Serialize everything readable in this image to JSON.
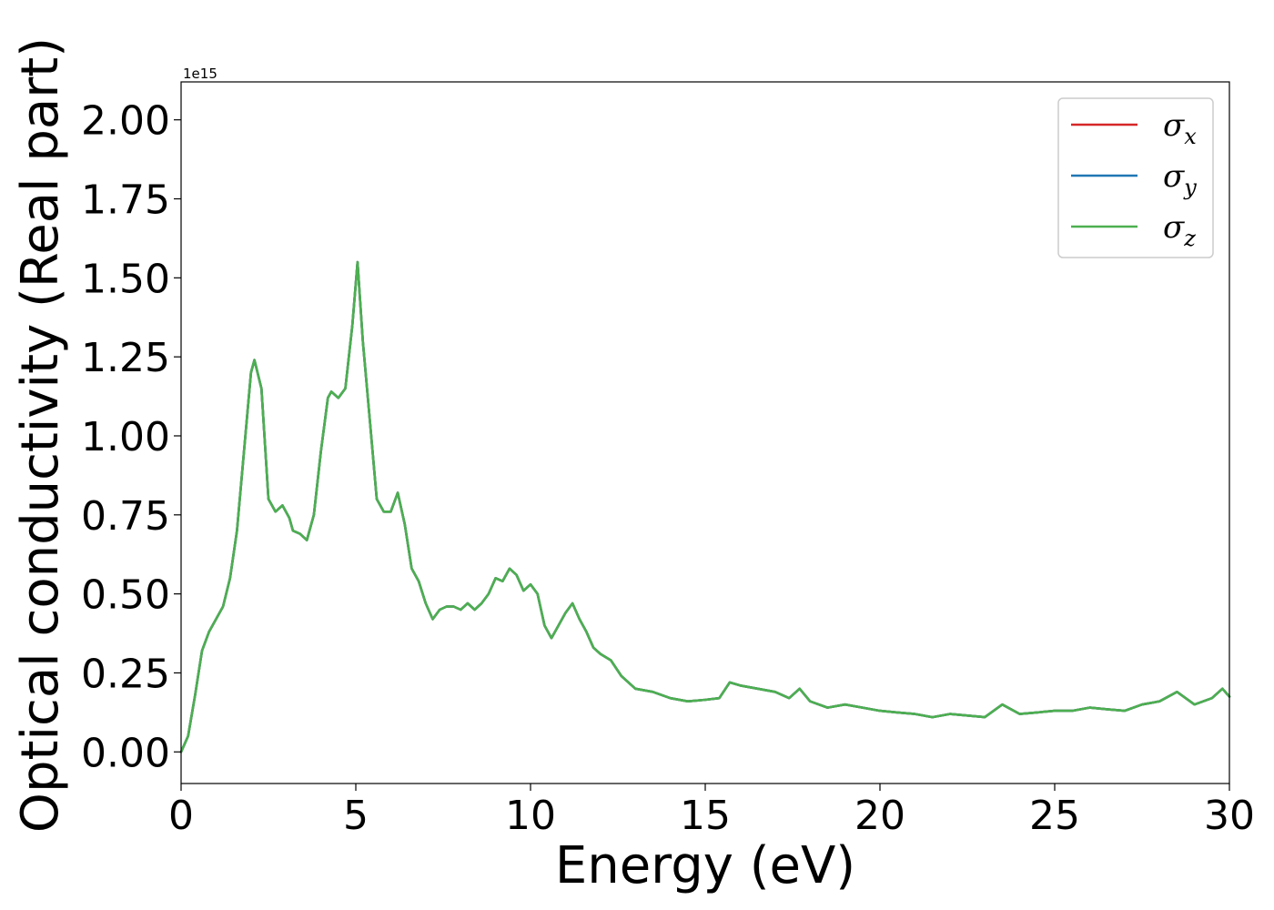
{
  "chart_data": {
    "type": "line",
    "title": "",
    "xlabel": "Energy (eV)",
    "ylabel": "Optical conductivity (Real part)",
    "y_offset_label": "1e15",
    "xlim": [
      0,
      30
    ],
    "ylim": [
      -0.1,
      2.12
    ],
    "xticks": [
      0,
      5,
      10,
      15,
      20,
      25,
      30
    ],
    "yticks": [
      0.0,
      0.25,
      0.5,
      0.75,
      1.0,
      1.25,
      1.5,
      1.75,
      2.0
    ],
    "xtick_labels": [
      "0",
      "5",
      "10",
      "15",
      "20",
      "25",
      "30"
    ],
    "ytick_labels": [
      "0.00",
      "0.25",
      "0.50",
      "0.75",
      "1.00",
      "1.25",
      "1.50",
      "1.75",
      "2.00"
    ],
    "grid": false,
    "legend_position": "top-right",
    "x": [
      0.0,
      0.2,
      0.4,
      0.6,
      0.8,
      1.0,
      1.2,
      1.4,
      1.6,
      1.8,
      2.0,
      2.1,
      2.3,
      2.5,
      2.7,
      2.9,
      3.1,
      3.2,
      3.4,
      3.6,
      3.8,
      4.0,
      4.2,
      4.3,
      4.5,
      4.7,
      4.9,
      5.05,
      5.2,
      5.4,
      5.6,
      5.8,
      6.0,
      6.2,
      6.4,
      6.6,
      6.8,
      7.0,
      7.2,
      7.4,
      7.6,
      7.8,
      8.0,
      8.2,
      8.4,
      8.6,
      8.8,
      9.0,
      9.2,
      9.4,
      9.6,
      9.8,
      10.0,
      10.2,
      10.4,
      10.6,
      10.8,
      11.0,
      11.2,
      11.4,
      11.6,
      11.8,
      12.0,
      12.3,
      12.6,
      13.0,
      13.5,
      14.0,
      14.5,
      15.0,
      15.4,
      15.7,
      16.0,
      16.5,
      17.0,
      17.4,
      17.7,
      18.0,
      18.5,
      19.0,
      19.5,
      20.0,
      20.5,
      21.0,
      21.5,
      22.0,
      22.5,
      23.0,
      23.5,
      24.0,
      24.5,
      25.0,
      25.5,
      26.0,
      26.5,
      27.0,
      27.5,
      28.0,
      28.5,
      29.0,
      29.5,
      29.8,
      30.0
    ],
    "series": [
      {
        "name": "σx",
        "legend_main": "σ",
        "legend_sub": "x",
        "color": "#d62728",
        "values": [
          0.0,
          0.05,
          0.18,
          0.32,
          0.38,
          0.42,
          0.46,
          0.55,
          0.7,
          0.95,
          1.2,
          1.24,
          1.15,
          0.8,
          0.76,
          0.78,
          0.74,
          0.7,
          0.69,
          0.67,
          0.75,
          0.95,
          1.12,
          1.14,
          1.12,
          1.15,
          1.35,
          1.55,
          1.3,
          1.05,
          0.8,
          0.76,
          0.76,
          0.82,
          0.72,
          0.58,
          0.54,
          0.47,
          0.42,
          0.45,
          0.46,
          0.46,
          0.45,
          0.47,
          0.45,
          0.47,
          0.5,
          0.55,
          0.54,
          0.58,
          0.56,
          0.51,
          0.53,
          0.5,
          0.4,
          0.36,
          0.4,
          0.44,
          0.47,
          0.42,
          0.38,
          0.33,
          0.31,
          0.29,
          0.24,
          0.2,
          0.19,
          0.17,
          0.16,
          0.165,
          0.17,
          0.22,
          0.21,
          0.2,
          0.19,
          0.17,
          0.2,
          0.16,
          0.14,
          0.15,
          0.14,
          0.13,
          0.125,
          0.12,
          0.11,
          0.12,
          0.115,
          0.11,
          0.15,
          0.12,
          0.125,
          0.13,
          0.13,
          0.14,
          0.135,
          0.13,
          0.15,
          0.16,
          0.19,
          0.15,
          0.17,
          0.2,
          0.175
        ]
      },
      {
        "name": "σy",
        "legend_main": "σ",
        "legend_sub": "y",
        "color": "#1f77b4",
        "values": [
          0.0,
          0.05,
          0.18,
          0.32,
          0.38,
          0.42,
          0.46,
          0.55,
          0.7,
          0.95,
          1.2,
          1.24,
          1.15,
          0.8,
          0.76,
          0.78,
          0.74,
          0.7,
          0.69,
          0.67,
          0.75,
          0.95,
          1.12,
          1.14,
          1.12,
          1.15,
          1.35,
          1.55,
          1.3,
          1.05,
          0.8,
          0.76,
          0.76,
          0.82,
          0.72,
          0.58,
          0.54,
          0.47,
          0.42,
          0.45,
          0.46,
          0.46,
          0.45,
          0.47,
          0.45,
          0.47,
          0.5,
          0.55,
          0.54,
          0.58,
          0.56,
          0.51,
          0.53,
          0.5,
          0.4,
          0.36,
          0.4,
          0.44,
          0.47,
          0.42,
          0.38,
          0.33,
          0.31,
          0.29,
          0.24,
          0.2,
          0.19,
          0.17,
          0.16,
          0.165,
          0.17,
          0.22,
          0.21,
          0.2,
          0.19,
          0.17,
          0.2,
          0.16,
          0.14,
          0.15,
          0.14,
          0.13,
          0.125,
          0.12,
          0.11,
          0.12,
          0.115,
          0.11,
          0.15,
          0.12,
          0.125,
          0.13,
          0.13,
          0.14,
          0.135,
          0.13,
          0.15,
          0.16,
          0.19,
          0.15,
          0.17,
          0.2,
          0.175
        ]
      },
      {
        "name": "σz",
        "legend_main": "σ",
        "legend_sub": "z",
        "color": "#4caf50",
        "values": [
          0.0,
          0.05,
          0.18,
          0.32,
          0.38,
          0.42,
          0.46,
          0.55,
          0.7,
          0.95,
          1.2,
          1.24,
          1.15,
          0.8,
          0.76,
          0.78,
          0.74,
          0.7,
          0.69,
          0.67,
          0.75,
          0.95,
          1.12,
          1.14,
          1.12,
          1.15,
          1.35,
          1.55,
          1.3,
          1.05,
          0.8,
          0.76,
          0.76,
          0.82,
          0.72,
          0.58,
          0.54,
          0.47,
          0.42,
          0.45,
          0.46,
          0.46,
          0.45,
          0.47,
          0.45,
          0.47,
          0.5,
          0.55,
          0.54,
          0.58,
          0.56,
          0.51,
          0.53,
          0.5,
          0.4,
          0.36,
          0.4,
          0.44,
          0.47,
          0.42,
          0.38,
          0.33,
          0.31,
          0.29,
          0.24,
          0.2,
          0.19,
          0.17,
          0.16,
          0.165,
          0.17,
          0.22,
          0.21,
          0.2,
          0.19,
          0.17,
          0.2,
          0.16,
          0.14,
          0.15,
          0.14,
          0.13,
          0.125,
          0.12,
          0.11,
          0.12,
          0.115,
          0.11,
          0.15,
          0.12,
          0.125,
          0.13,
          0.13,
          0.14,
          0.135,
          0.13,
          0.15,
          0.16,
          0.19,
          0.15,
          0.17,
          0.2,
          0.175
        ]
      }
    ]
  }
}
